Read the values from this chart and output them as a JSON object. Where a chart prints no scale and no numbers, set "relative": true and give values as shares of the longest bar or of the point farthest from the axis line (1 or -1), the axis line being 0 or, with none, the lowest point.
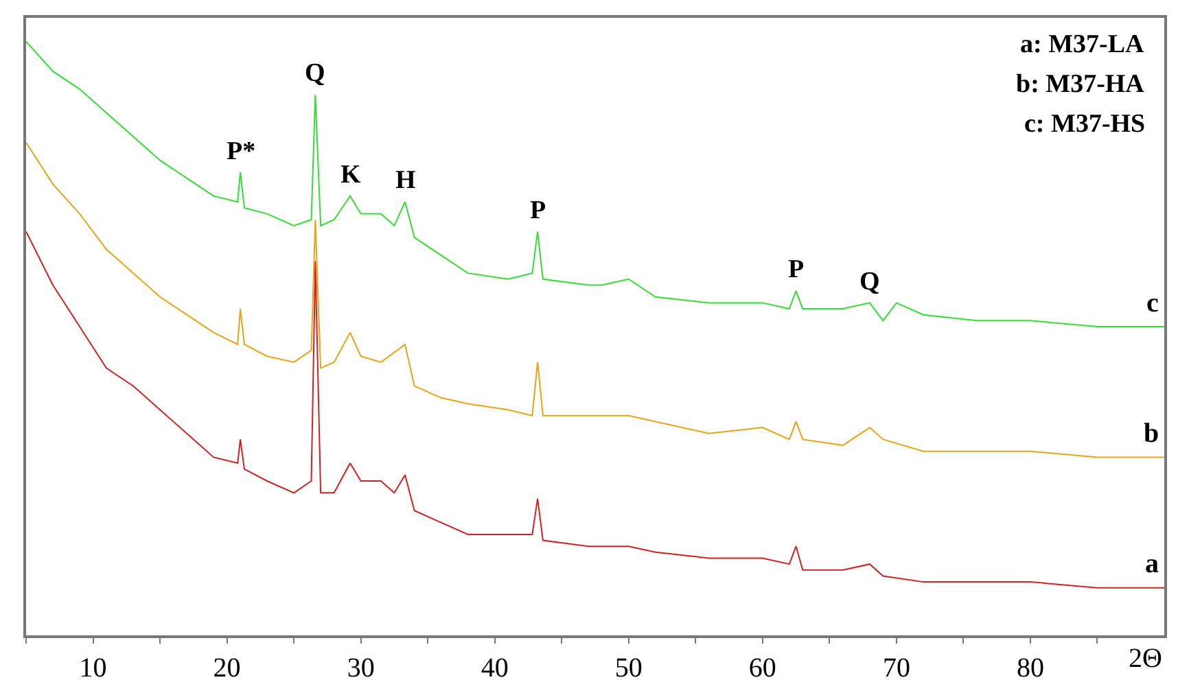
{
  "chart_data": {
    "type": "line",
    "relative": true,
    "xlabel": "2Θ",
    "xlim": [
      5,
      90
    ],
    "xticks": [
      {
        "value": 5,
        "label": null
      },
      10,
      {
        "value": 15,
        "label": null
      },
      20,
      {
        "value": 25,
        "label": null
      },
      30,
      {
        "value": 35,
        "label": null
      },
      40,
      {
        "value": 45,
        "label": null
      },
      50,
      {
        "value": 55,
        "label": null
      },
      60,
      {
        "value": 65,
        "label": null
      },
      70,
      {
        "value": 75,
        "label": null
      },
      80,
      {
        "value": 85,
        "label": null
      }
    ],
    "legend": false,
    "marker": "none",
    "line_style": "solid",
    "series": [
      {
        "name": "a",
        "color": "#d42020",
        "x": [
          5,
          7,
          9,
          11,
          13,
          15,
          17,
          19,
          20.8,
          21,
          21.3,
          23,
          25,
          26.3,
          26.6,
          27,
          28,
          29.2,
          30,
          31.5,
          32.5,
          33.3,
          34,
          36,
          38,
          41,
          42.8,
          43.2,
          43.6,
          47,
          48,
          50,
          52,
          56,
          60,
          62,
          62.5,
          63,
          66,
          68,
          69,
          72,
          76,
          80,
          85,
          90
        ],
        "values": [
          0.68,
          0.59,
          0.52,
          0.45,
          0.42,
          0.38,
          0.34,
          0.3,
          0.29,
          0.33,
          0.28,
          0.26,
          0.24,
          0.26,
          0.63,
          0.24,
          0.24,
          0.29,
          0.26,
          0.26,
          0.24,
          0.27,
          0.21,
          0.19,
          0.17,
          0.17,
          0.17,
          0.23,
          0.16,
          0.15,
          0.15,
          0.15,
          0.14,
          0.13,
          0.13,
          0.12,
          0.15,
          0.11,
          0.11,
          0.12,
          0.1,
          0.09,
          0.09,
          0.09,
          0.08,
          0.08
        ]
      },
      {
        "name": "b",
        "color": "#e8a317",
        "x": [
          5,
          7,
          9,
          11,
          13,
          15,
          17,
          19,
          20.8,
          21,
          21.3,
          23,
          25,
          26.3,
          26.6,
          27,
          28,
          29.2,
          30,
          31.5,
          33.3,
          34,
          36,
          38,
          41,
          42.8,
          43.2,
          43.6,
          47,
          48,
          50,
          52,
          56,
          60,
          62,
          62.5,
          63,
          66,
          68,
          69,
          72,
          76,
          80,
          85,
          90
        ],
        "values": [
          0.83,
          0.76,
          0.71,
          0.65,
          0.61,
          0.57,
          0.54,
          0.51,
          0.49,
          0.55,
          0.49,
          0.47,
          0.46,
          0.48,
          0.7,
          0.45,
          0.46,
          0.51,
          0.47,
          0.46,
          0.49,
          0.42,
          0.4,
          0.39,
          0.38,
          0.37,
          0.46,
          0.37,
          0.37,
          0.37,
          0.37,
          0.36,
          0.34,
          0.35,
          0.33,
          0.36,
          0.33,
          0.32,
          0.35,
          0.33,
          0.31,
          0.31,
          0.31,
          0.3,
          0.3
        ]
      },
      {
        "name": "c",
        "color": "#33dd33",
        "x": [
          5,
          7,
          9,
          11,
          13,
          15,
          17,
          19,
          20.8,
          21,
          21.3,
          23,
          25,
          26.3,
          26.6,
          27,
          28,
          29.2,
          30,
          31.5,
          32.5,
          33.3,
          34,
          36,
          38,
          41,
          42.8,
          43.2,
          43.6,
          47,
          48,
          50,
          52,
          56,
          60,
          62,
          62.5,
          63,
          66,
          68,
          69,
          70,
          72,
          76,
          80,
          85,
          90
        ],
        "values": [
          1.0,
          0.95,
          0.92,
          0.88,
          0.84,
          0.8,
          0.77,
          0.74,
          0.73,
          0.78,
          0.72,
          0.71,
          0.69,
          0.7,
          0.91,
          0.69,
          0.7,
          0.74,
          0.71,
          0.71,
          0.69,
          0.73,
          0.67,
          0.64,
          0.61,
          0.6,
          0.61,
          0.68,
          0.6,
          0.59,
          0.59,
          0.6,
          0.57,
          0.56,
          0.56,
          0.55,
          0.58,
          0.55,
          0.55,
          0.56,
          0.53,
          0.56,
          0.54,
          0.53,
          0.53,
          0.52,
          0.52
        ]
      }
    ],
    "annotations": [
      "a: M37-LA",
      "b: M37-HA",
      "c: M37-HS",
      {
        "text": "P*",
        "x": 21,
        "y": 0.78
      },
      {
        "text": "Q",
        "x": 26.6,
        "y": 0.91
      },
      {
        "text": "K",
        "x": 29.2,
        "y": 0.74
      },
      {
        "text": "H",
        "x": 33.3,
        "y": 0.73
      },
      {
        "text": "P",
        "x": 43.2,
        "y": 0.68
      },
      {
        "text": "P",
        "x": 62.5,
        "y": 0.58
      },
      {
        "text": "Q",
        "x": 68,
        "y": 0.56
      }
    ]
  }
}
